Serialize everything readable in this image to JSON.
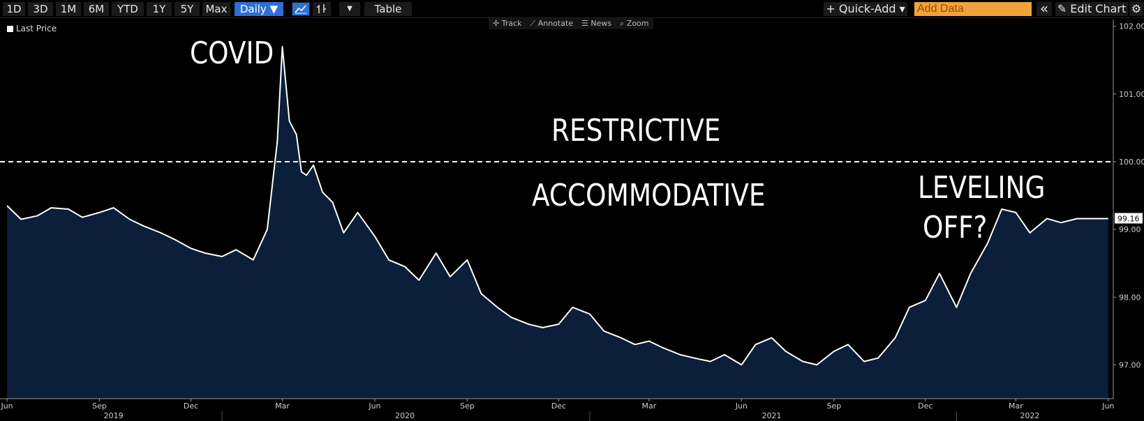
{
  "toolbar": {
    "ranges": [
      "1D",
      "3D",
      "1M",
      "6M",
      "YTD",
      "1Y",
      "5Y",
      "Max"
    ],
    "frequency": "Daily ▼",
    "table_label": "Table",
    "quick_add": "+ Quick-Add ▾",
    "add_data_placeholder": "Add Data",
    "collapse_icon": "«",
    "edit_chart": "✎ Edit Chart",
    "settings_icon": "⚙"
  },
  "chart_tools": [
    "✢ Track",
    "⟋ Annotate",
    "☰ News",
    "⌕ Zoom"
  ],
  "legend": {
    "label": "Last Price"
  },
  "annotations": {
    "covid": "COVID",
    "restrictive": "RESTRICTIVE",
    "accommodative": "ACCOMMODATIVE",
    "leveling_1": "LEVELING",
    "leveling_2": "OFF?"
  },
  "chart_data": {
    "type": "area",
    "series": [
      {
        "name": "Last Price",
        "x": [
          "2019-06-01",
          "2019-06-15",
          "2019-07-01",
          "2019-07-15",
          "2019-08-01",
          "2019-08-15",
          "2019-09-01",
          "2019-09-15",
          "2019-10-01",
          "2019-10-15",
          "2019-11-01",
          "2019-11-15",
          "2019-12-01",
          "2019-12-15",
          "2020-01-01",
          "2020-01-15",
          "2020-02-01",
          "2020-02-15",
          "2020-02-25",
          "2020-03-01",
          "2020-03-08",
          "2020-03-15",
          "2020-03-20",
          "2020-03-25",
          "2020-04-01",
          "2020-04-10",
          "2020-04-20",
          "2020-05-01",
          "2020-05-15",
          "2020-06-01",
          "2020-06-15",
          "2020-07-01",
          "2020-07-15",
          "2020-08-01",
          "2020-08-15",
          "2020-09-01",
          "2020-09-15",
          "2020-10-01",
          "2020-10-15",
          "2020-11-01",
          "2020-11-15",
          "2020-12-01",
          "2020-12-15",
          "2021-01-01",
          "2021-01-15",
          "2021-02-01",
          "2021-02-15",
          "2021-03-01",
          "2021-03-15",
          "2021-04-01",
          "2021-04-15",
          "2021-05-01",
          "2021-05-15",
          "2021-06-01",
          "2021-06-15",
          "2021-07-01",
          "2021-07-15",
          "2021-08-01",
          "2021-08-15",
          "2021-09-01",
          "2021-09-15",
          "2021-10-01",
          "2021-10-15",
          "2021-11-01",
          "2021-11-15",
          "2021-12-01",
          "2021-12-15",
          "2022-01-01",
          "2022-01-15",
          "2022-02-01",
          "2022-02-15",
          "2022-03-01",
          "2022-03-15",
          "2022-04-01",
          "2022-04-15",
          "2022-05-01",
          "2022-05-10",
          "2022-05-20",
          "2022-06-01"
        ],
        "values": [
          99.35,
          99.15,
          99.2,
          99.32,
          99.3,
          99.18,
          99.25,
          99.32,
          99.15,
          99.05,
          98.95,
          98.85,
          98.72,
          98.65,
          98.6,
          98.7,
          98.55,
          99.0,
          100.3,
          101.7,
          100.6,
          100.4,
          99.85,
          99.8,
          99.95,
          99.55,
          99.4,
          98.95,
          99.25,
          98.9,
          98.55,
          98.45,
          98.25,
          98.65,
          98.3,
          98.55,
          98.05,
          97.85,
          97.7,
          97.6,
          97.55,
          97.6,
          97.85,
          97.75,
          97.5,
          97.4,
          97.3,
          97.35,
          97.25,
          97.15,
          97.1,
          97.05,
          97.15,
          97.0,
          97.3,
          97.4,
          97.2,
          97.05,
          97.0,
          97.2,
          97.3,
          97.05,
          97.1,
          97.4,
          97.85,
          97.95,
          98.35,
          97.85,
          98.35,
          98.8,
          99.3,
          99.25,
          98.95,
          99.16,
          99.1,
          99.16,
          99.16,
          99.16,
          99.16
        ]
      }
    ],
    "last_value": "99.16",
    "reference_line": 100.0,
    "ylim": [
      96.5,
      102.1
    ],
    "yticks": [
      "97.00",
      "98.00",
      "99.00",
      "100.00",
      "101.00",
      "102.00"
    ],
    "ytick_values": [
      97,
      98,
      99,
      100,
      101,
      102
    ],
    "xticks": [
      "Jun",
      "Sep",
      "Dec",
      "Mar",
      "Jun",
      "Sep",
      "Dec",
      "Mar",
      "Jun",
      "Sep",
      "Dec",
      "Mar",
      "Jun"
    ],
    "years": [
      "2019",
      "2020",
      "2021",
      "2022"
    ],
    "colors": {
      "line": "#ffffff",
      "fill": "#0b1e3a",
      "background": "#000000",
      "reference": "#ffffff"
    }
  }
}
